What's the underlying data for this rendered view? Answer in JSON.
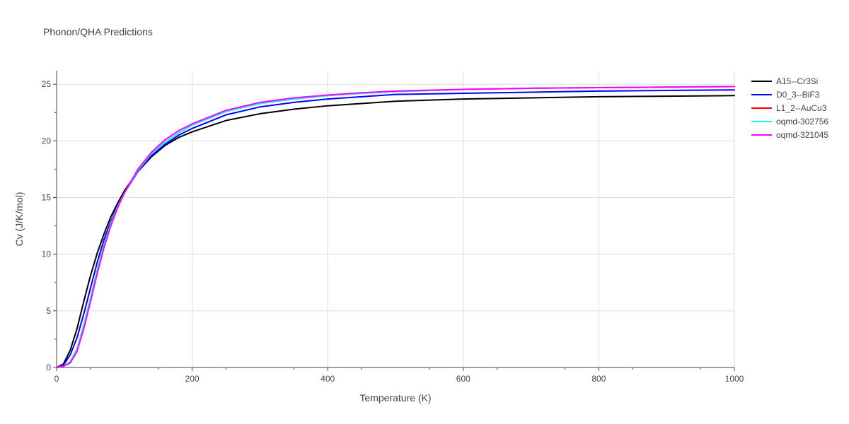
{
  "chart_data": {
    "type": "line",
    "title": "Phonon/QHA Predictions",
    "xlabel": "Temperature (K)",
    "ylabel": "Cv (J/K/mol)",
    "xlim": [
      0,
      1000
    ],
    "ylim": [
      0,
      26.2
    ],
    "xticks": [
      0,
      200,
      400,
      600,
      800,
      1000
    ],
    "yticks": [
      0,
      5,
      10,
      15,
      20,
      25
    ],
    "grid": true,
    "legend": "right",
    "x": [
      0,
      10,
      20,
      30,
      40,
      50,
      60,
      70,
      80,
      90,
      100,
      120,
      140,
      160,
      180,
      200,
      250,
      300,
      350,
      400,
      450,
      500,
      600,
      700,
      800,
      900,
      1000
    ],
    "series": [
      {
        "name": "A15--Cr3Si",
        "color": "#000000",
        "values": [
          0,
          0.3,
          1.5,
          3.4,
          5.8,
          8.1,
          10.1,
          11.8,
          13.3,
          14.5,
          15.6,
          17.3,
          18.6,
          19.6,
          20.3,
          20.8,
          21.8,
          22.4,
          22.8,
          23.1,
          23.3,
          23.5,
          23.7,
          23.8,
          23.9,
          23.95,
          24.0
        ]
      },
      {
        "name": "D0_3--BiF3",
        "color": "#0000ff",
        "values": [
          0,
          0.2,
          1.1,
          2.6,
          4.7,
          7.0,
          9.3,
          11.3,
          12.9,
          14.3,
          15.4,
          17.3,
          18.7,
          19.7,
          20.5,
          21.1,
          22.3,
          23.0,
          23.4,
          23.7,
          23.9,
          24.1,
          24.2,
          24.3,
          24.4,
          24.45,
          24.5
        ]
      },
      {
        "name": "L1_2--AuCu3",
        "color": "#ff0000",
        "values": [
          0,
          0.1,
          0.5,
          1.6,
          3.7,
          6.1,
          8.6,
          10.8,
          12.7,
          14.2,
          15.4,
          17.4,
          18.9,
          19.9,
          20.7,
          21.4,
          22.6,
          23.3,
          23.7,
          24.0,
          24.2,
          24.35,
          24.55,
          24.65,
          24.7,
          24.75,
          24.8
        ]
      },
      {
        "name": "oqmd-302756",
        "color": "#00ffff",
        "values": [
          0,
          0.1,
          0.5,
          1.6,
          3.7,
          6.1,
          8.6,
          10.8,
          12.7,
          14.2,
          15.4,
          17.4,
          18.9,
          19.9,
          20.7,
          21.4,
          22.6,
          23.3,
          23.7,
          24.0,
          24.2,
          24.35,
          24.55,
          24.65,
          24.7,
          24.75,
          24.8
        ]
      },
      {
        "name": "oqmd-321045",
        "color": "#ff00ff",
        "values": [
          0,
          0.1,
          0.4,
          1.4,
          3.4,
          5.8,
          8.3,
          10.6,
          12.5,
          14.1,
          15.4,
          17.5,
          19.0,
          20.1,
          20.9,
          21.5,
          22.7,
          23.4,
          23.8,
          24.05,
          24.25,
          24.4,
          24.55,
          24.65,
          24.7,
          24.75,
          24.8
        ]
      }
    ]
  }
}
